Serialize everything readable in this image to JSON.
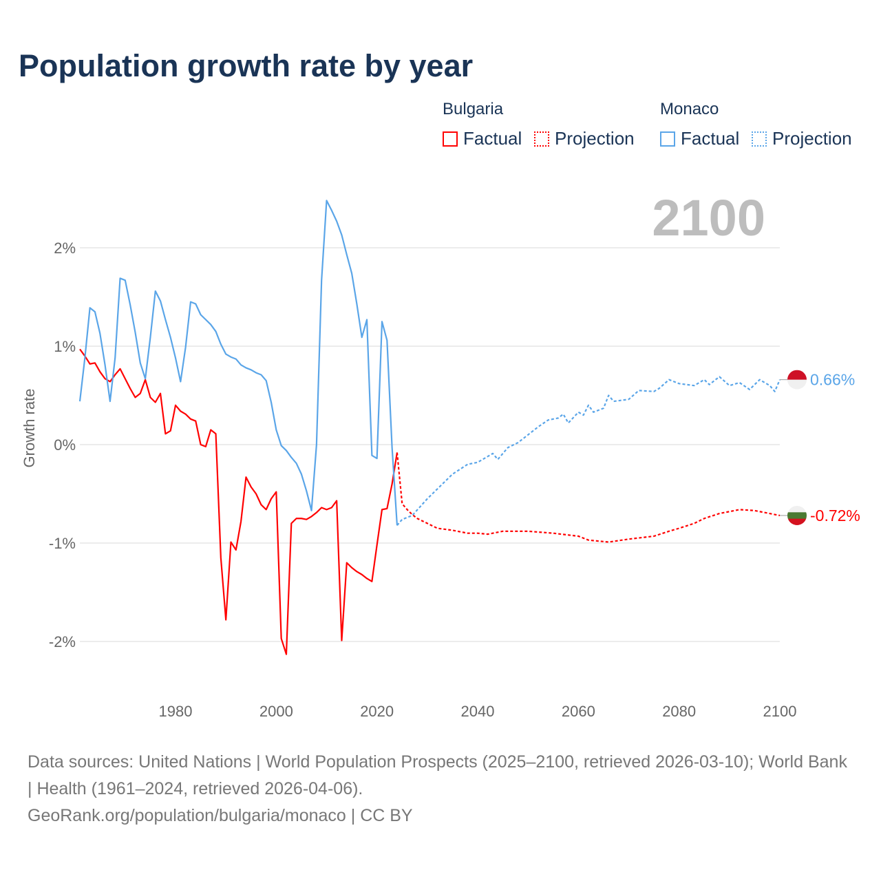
{
  "title": "Population growth rate by year",
  "legend": {
    "groups": [
      {
        "name": "Bulgaria",
        "color": "#ff0000",
        "factual": "Factual",
        "projection": "Projection"
      },
      {
        "name": "Monaco",
        "color": "#5aa5e8",
        "factual": "Factual",
        "projection": "Projection"
      }
    ]
  },
  "year_label": "2100",
  "source": {
    "line1": "Data sources: United Nations | World Population Prospects (2025–2100, retrieved 2026-03-10); World Bank | Health (1961–2024, retrieved 2026-04-06).",
    "line2": "GeoRank.org/population/bulgaria/monaco | CC BY"
  },
  "chart_data": {
    "type": "line",
    "title": "Population growth rate by year",
    "xlabel": "",
    "ylabel": "Growth rate",
    "xlim": [
      1961,
      2100
    ],
    "ylim": [
      -2.5,
      2.6
    ],
    "xticks": [
      1980,
      2000,
      2020,
      2040,
      2060,
      2080,
      2100
    ],
    "yticks": [
      {
        "v": 2,
        "label": "2%"
      },
      {
        "v": 1,
        "label": "1%"
      },
      {
        "v": 0,
        "label": "0%"
      },
      {
        "v": -1,
        "label": "-1%"
      },
      {
        "v": -2,
        "label": "-2%"
      }
    ],
    "grid": true,
    "series": [
      {
        "name": "Bulgaria Factual",
        "color": "#ff0000",
        "dash": false,
        "x0": 1961,
        "values": [
          0.97,
          0.9,
          0.82,
          0.83,
          0.74,
          0.67,
          0.64,
          0.71,
          0.77,
          0.67,
          0.57,
          0.48,
          0.52,
          0.66,
          0.48,
          0.43,
          0.52,
          0.11,
          0.14,
          0.4,
          0.34,
          0.31,
          0.26,
          0.24,
          0.0,
          -0.02,
          0.15,
          0.11,
          -1.15,
          -1.78,
          -0.99,
          -1.07,
          -0.78,
          -0.33,
          -0.43,
          -0.5,
          -0.61,
          -0.66,
          -0.55,
          -0.48,
          -1.97,
          -2.13,
          -0.8,
          -0.75,
          -0.75,
          -0.76,
          -0.73,
          -0.69,
          -0.64,
          -0.66,
          -0.64,
          -0.57,
          -1.99,
          -1.2,
          -1.25,
          -1.29,
          -1.32,
          -1.36,
          -1.39,
          -1.02,
          -0.66,
          -0.65,
          -0.4,
          -0.08
        ]
      },
      {
        "name": "Bulgaria Projection",
        "color": "#ff0000",
        "dash": true,
        "x": [
          2024,
          2025,
          2026,
          2027,
          2028,
          2030,
          2032,
          2035,
          2038,
          2040,
          2042,
          2045,
          2050,
          2055,
          2060,
          2062,
          2066,
          2070,
          2075,
          2078,
          2080,
          2083,
          2085,
          2088,
          2090,
          2092,
          2095,
          2098,
          2100
        ],
        "y": [
          -0.08,
          -0.6,
          -0.66,
          -0.71,
          -0.75,
          -0.8,
          -0.85,
          -0.87,
          -0.9,
          -0.9,
          -0.91,
          -0.88,
          -0.88,
          -0.9,
          -0.93,
          -0.97,
          -0.99,
          -0.96,
          -0.93,
          -0.88,
          -0.85,
          -0.8,
          -0.75,
          -0.7,
          -0.68,
          -0.66,
          -0.67,
          -0.7,
          -0.72
        ]
      },
      {
        "name": "Monaco Factual",
        "color": "#5aa5e8",
        "dash": false,
        "x0": 1961,
        "values": [
          0.44,
          0.88,
          1.39,
          1.35,
          1.13,
          0.81,
          0.44,
          0.88,
          1.69,
          1.67,
          1.42,
          1.14,
          0.83,
          0.67,
          1.09,
          1.56,
          1.46,
          1.27,
          1.09,
          0.88,
          0.64,
          0.99,
          1.45,
          1.43,
          1.32,
          1.27,
          1.22,
          1.15,
          1.02,
          0.92,
          0.89,
          0.87,
          0.81,
          0.78,
          0.76,
          0.73,
          0.71,
          0.65,
          0.43,
          0.15,
          -0.01,
          -0.06,
          -0.13,
          -0.19,
          -0.3,
          -0.47,
          -0.67,
          0.0,
          1.67,
          2.48,
          2.38,
          2.27,
          2.13,
          1.93,
          1.74,
          1.43,
          1.09,
          1.27,
          -0.11,
          -0.14,
          1.25,
          1.06,
          -0.03,
          -0.82
        ]
      },
      {
        "name": "Monaco Projection",
        "color": "#5aa5e8",
        "dash": true,
        "x": [
          2024,
          2025,
          2027,
          2030,
          2032,
          2035,
          2038,
          2040,
          2042,
          2043,
          2044,
          2046,
          2048,
          2050,
          2052,
          2054,
          2056,
          2057,
          2058,
          2060,
          2061,
          2062,
          2063,
          2065,
          2066,
          2067,
          2070,
          2072,
          2075,
          2076,
          2078,
          2080,
          2083,
          2085,
          2086,
          2088,
          2090,
          2092,
          2094,
          2096,
          2098,
          2099,
          2100
        ],
        "y": [
          -0.82,
          -0.76,
          -0.72,
          -0.55,
          -0.45,
          -0.3,
          -0.2,
          -0.18,
          -0.12,
          -0.09,
          -0.15,
          -0.03,
          0.02,
          0.1,
          0.18,
          0.25,
          0.27,
          0.31,
          0.22,
          0.33,
          0.3,
          0.4,
          0.33,
          0.37,
          0.5,
          0.44,
          0.46,
          0.55,
          0.54,
          0.57,
          0.66,
          0.62,
          0.6,
          0.66,
          0.61,
          0.69,
          0.6,
          0.63,
          0.56,
          0.66,
          0.6,
          0.54,
          0.66
        ]
      }
    ],
    "end_labels": [
      {
        "country": "Monaco",
        "value": 0.66,
        "label": "0.66%",
        "color": "#5aa5e8",
        "flag": [
          "#ce1126",
          "#f0f0f0"
        ]
      },
      {
        "country": "Bulgaria",
        "value": -0.72,
        "label": "-0.72%",
        "color": "#ff0000",
        "flag": [
          "#f0f0f0",
          "#4a7a32",
          "#d4121f"
        ]
      }
    ]
  }
}
